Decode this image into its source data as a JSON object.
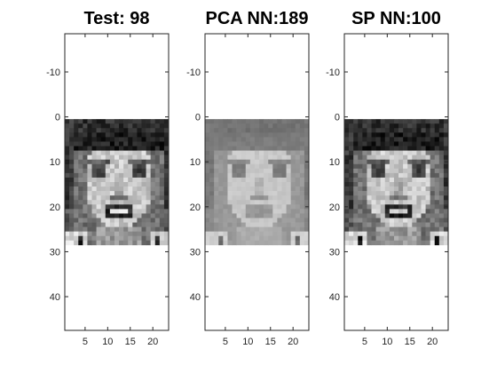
{
  "figure": {
    "background": "#ffffff",
    "axis_color": "#262626"
  },
  "chart_data": [
    {
      "type": "heatmap",
      "title": "Test: 98",
      "colormap": "gray",
      "image_size": [
        28,
        23
      ],
      "xlim": [
        0.5,
        23.5
      ],
      "ylim": [
        -18.5,
        47.5
      ],
      "y_reversed": true,
      "xticks": [
        5,
        10,
        15,
        20
      ],
      "yticks": [
        -10,
        0,
        10,
        20,
        30,
        40
      ]
    },
    {
      "type": "heatmap",
      "title": "PCA NN:189",
      "colormap": "gray",
      "image_size": [
        28,
        23
      ],
      "xlim": [
        0.5,
        23.5
      ],
      "ylim": [
        -18.5,
        47.5
      ],
      "y_reversed": true,
      "xticks": [
        5,
        10,
        15,
        20
      ],
      "yticks": [
        -10,
        0,
        10,
        20,
        30,
        40
      ]
    },
    {
      "type": "heatmap",
      "title": "SP NN:100",
      "colormap": "gray",
      "image_size": [
        28,
        23
      ],
      "xlim": [
        0.5,
        23.5
      ],
      "ylim": [
        -18.5,
        47.5
      ],
      "y_reversed": true,
      "xticks": [
        5,
        10,
        15,
        20
      ],
      "yticks": [
        -10,
        0,
        10,
        20,
        30,
        40
      ]
    }
  ]
}
